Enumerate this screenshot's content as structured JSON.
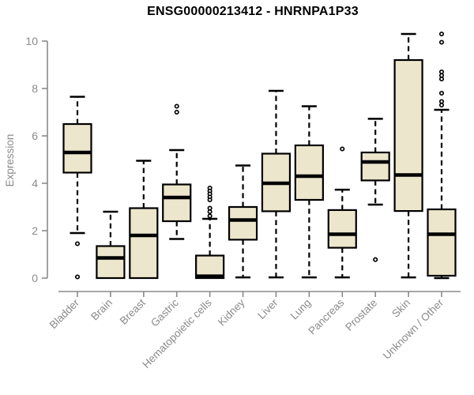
{
  "chart_data": {
    "type": "boxplot",
    "title": "ENSG00000213412 - HNRNPA1P33",
    "ylabel": "Expression",
    "xlabel": "",
    "yticks": [
      0,
      2,
      4,
      6,
      8,
      10
    ],
    "ylim": [
      0,
      10.4
    ],
    "grid": false,
    "legend": "none",
    "categories": [
      "Bladder",
      "Brain",
      "Breast",
      "Gastric",
      "Hematopoietic cells",
      "Kidney",
      "Liver",
      "Lung",
      "Pancreas",
      "Prostate",
      "Skin",
      "Unknown / Other"
    ],
    "boxes": [
      {
        "category": "Bladder",
        "whisker_low": 1.9,
        "q1": 4.45,
        "median": 5.3,
        "q3": 6.5,
        "whisker_high": 7.65,
        "outliers": [
          1.45,
          0.05
        ]
      },
      {
        "category": "Brain",
        "whisker_low": 0,
        "q1": 0,
        "median": 0.85,
        "q3": 1.35,
        "whisker_high": 2.8,
        "outliers": []
      },
      {
        "category": "Breast",
        "whisker_low": 0,
        "q1": 0,
        "median": 1.8,
        "q3": 2.95,
        "whisker_high": 4.95,
        "outliers": []
      },
      {
        "category": "Gastric",
        "whisker_low": 1.65,
        "q1": 2.4,
        "median": 3.4,
        "q3": 3.95,
        "whisker_high": 5.4,
        "outliers": [
          7.25,
          7.0
        ]
      },
      {
        "category": "Hematopoietic cells",
        "whisker_low": 0,
        "q1": 0,
        "median": 0.08,
        "q3": 0.95,
        "whisker_high": 2.5,
        "outliers": [
          3.8,
          3.67,
          3.55,
          3.42,
          3.3,
          2.95,
          2.8,
          2.62
        ]
      },
      {
        "category": "Kidney",
        "whisker_low": 0.03,
        "q1": 1.62,
        "median": 2.45,
        "q3": 3.0,
        "whisker_high": 4.75,
        "outliers": []
      },
      {
        "category": "Liver",
        "whisker_low": 0.03,
        "q1": 2.82,
        "median": 4.0,
        "q3": 5.25,
        "whisker_high": 7.9,
        "outliers": []
      },
      {
        "category": "Lung",
        "whisker_low": 0.03,
        "q1": 3.3,
        "median": 4.3,
        "q3": 5.6,
        "whisker_high": 7.25,
        "outliers": []
      },
      {
        "category": "Pancreas",
        "whisker_low": 0.03,
        "q1": 1.28,
        "median": 1.85,
        "q3": 2.87,
        "whisker_high": 3.73,
        "outliers": [
          5.45
        ]
      },
      {
        "category": "Prostate",
        "whisker_low": 3.1,
        "q1": 4.12,
        "median": 4.9,
        "q3": 5.3,
        "whisker_high": 6.72,
        "outliers": [
          0.78
        ]
      },
      {
        "category": "Skin",
        "whisker_low": 0.03,
        "q1": 2.83,
        "median": 4.35,
        "q3": 9.2,
        "whisker_high": 10.3,
        "outliers": []
      },
      {
        "category": "Unknown / Other",
        "whisker_low": 0,
        "q1": 0.1,
        "median": 1.85,
        "q3": 2.9,
        "whisker_high": 7.1,
        "outliers": [
          10.3,
          9.95,
          8.7,
          8.55,
          8.4,
          7.8,
          7.45,
          7.3
        ]
      }
    ],
    "colors": {
      "box_fill": "#ECE6CC",
      "box_border": "#000000",
      "median": "#000000",
      "axis": "#8a8a8a",
      "label": "#8a8a8a",
      "title": "#000000",
      "background": "#ffffff"
    }
  }
}
